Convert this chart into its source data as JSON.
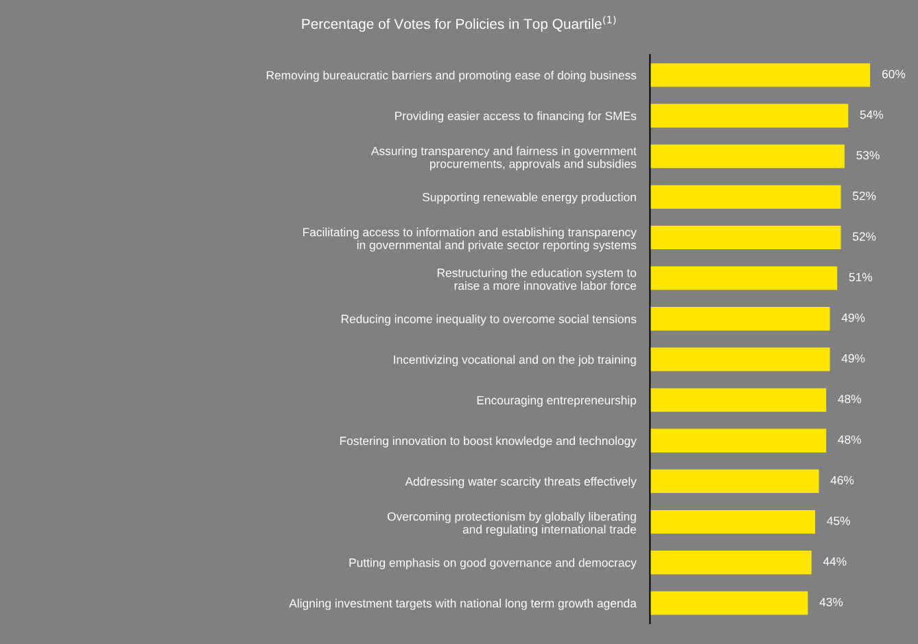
{
  "chart_data": {
    "type": "bar",
    "orientation": "horizontal",
    "title": "Percentage of Votes for Policies in Top Quartile$^{(1)}$",
    "categories": [
      "Removing bureaucratic barriers and promoting ease of doing business",
      "Providing easier access to financing for SMEs",
      "Assuring transparency and fairness in government\nprocurements, approvals and subsidies",
      "Supporting renewable energy production",
      "Facilitating access to information and establishing transparency\nin governmental and private sector reporting systems",
      "Restructuring the education system to\nraise a more innovative labor force",
      "Reducing income inequality to overcome social tensions",
      "Incentivizing vocational and on the job training",
      "Encouraging entrepreneurship",
      "Fostering innovation to boost knowledge and technology",
      "Addressing water scarcity threats effectively",
      "Overcoming protectionism by globally liberating\nand regulating international trade",
      "Putting emphasis on good governance and democracy",
      "Aligning investment targets with national long term growth agenda"
    ],
    "values": [
      60,
      54,
      53,
      52,
      52,
      51,
      49,
      49,
      48,
      48,
      46,
      45,
      44,
      43
    ],
    "value_labels": [
      "60%",
      "54%",
      "53%",
      "52%",
      "52%",
      "51%",
      "49%",
      "49%",
      "48%",
      "48%",
      "46%",
      "45%",
      "44%",
      "43%"
    ],
    "color": "#ffe600",
    "tick_labels": "y",
    "grid": false,
    "legend": false
  }
}
